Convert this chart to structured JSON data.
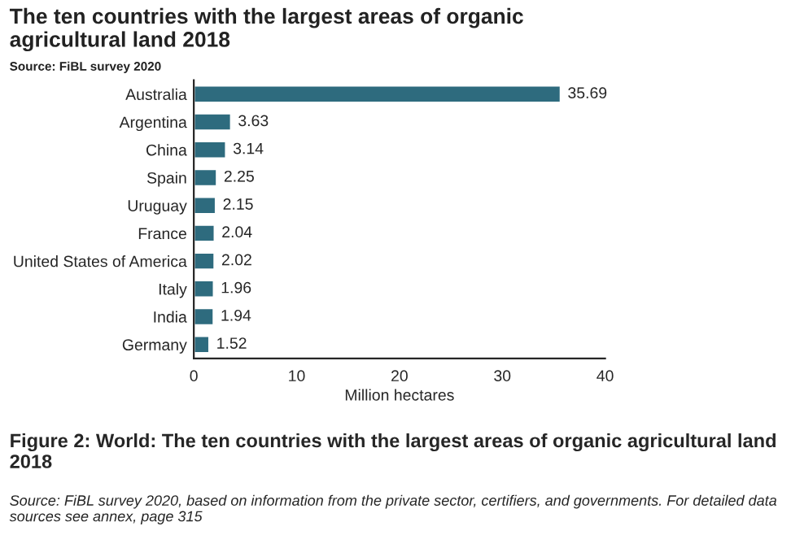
{
  "chart_data": {
    "type": "bar",
    "orientation": "horizontal",
    "title": "The ten countries with the largest areas of organic\nagricultural land 2018",
    "subtitle": "Source: FiBL survey 2020",
    "xlabel": "Million hectares",
    "categories": [
      "Australia",
      "Argentina",
      "China",
      "Spain",
      "Uruguay",
      "France",
      "United States of America",
      "Italy",
      "India",
      "Germany"
    ],
    "values": [
      35.69,
      3.63,
      3.14,
      2.25,
      2.15,
      2.04,
      2.02,
      1.96,
      1.94,
      1.52
    ],
    "color": "#2e6b7e",
    "xlim": [
      0,
      40
    ],
    "xticks": [
      0,
      10,
      20,
      30,
      40
    ],
    "data_labels": true,
    "grid": false,
    "legend": false,
    "annotations": [
      "Figure 2: World: The ten countries with the largest areas of organic agricultural land 2018",
      "Source: FiBL survey 2020, based on information from the private sector, certifiers, and governments. For detailed data sources see annex, page 315"
    ]
  }
}
